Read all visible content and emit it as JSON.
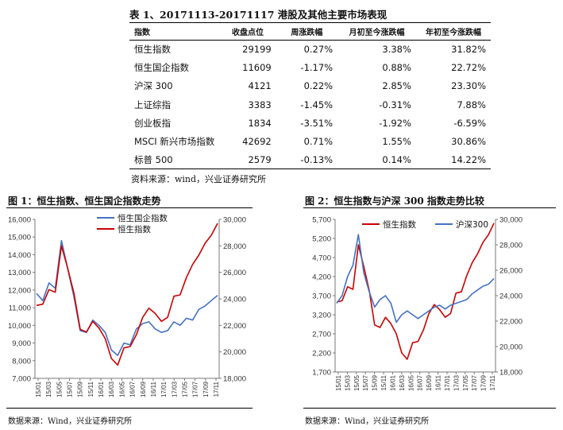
{
  "table": {
    "title": "表 1、20171113-20171117 港股及其他主要市场表现",
    "headers": [
      "指数",
      "收盘点位",
      "周涨跌幅",
      "月初至今涨跌幅",
      "年初至今涨跌幅"
    ],
    "rows": [
      [
        "恒生指数",
        "29199",
        "0.27%",
        "3.38%",
        "31.82%"
      ],
      [
        "恒生国企指数",
        "11609",
        "-1.17%",
        "0.88%",
        "22.72%"
      ],
      [
        "沪深 300",
        "4121",
        "0.22%",
        "2.85%",
        "23.30%"
      ],
      [
        "上证综指",
        "3383",
        "-1.45%",
        "-0.31%",
        "7.88%"
      ],
      [
        "创业板指",
        "1834",
        "-3.51%",
        "-1.92%",
        "-6.59%"
      ],
      [
        "MSCI 新兴市场指数",
        "42692",
        "0.71%",
        "1.55%",
        "30.86%"
      ],
      [
        "标普 500",
        "2579",
        "-0.13%",
        "0.14%",
        "14.22%"
      ]
    ],
    "source": "资料来源：wind，兴业证券研究所"
  },
  "figure1": {
    "title": "图 1：恒生指数、恒生国企指数走势",
    "source": "数据来源：Wind，兴业证券研究所"
  },
  "figure2": {
    "title": "图 2：恒生指数与沪深 300 指数走势比较",
    "source": "数据来源：Wind，兴业证券研究所"
  },
  "chart_data": [
    {
      "type": "line",
      "legend_position": "top-left",
      "grid": false,
      "x_tick_labels": [
        "15/01",
        "15/03",
        "15/05",
        "15/07",
        "15/09",
        "15/11",
        "16/01",
        "16/03",
        "16/05",
        "16/07",
        "16/09",
        "16/11",
        "17/01",
        "17/03",
        "17/05",
        "17/07",
        "17/09",
        "17/11"
      ],
      "left_axis": {
        "ylim": [
          7000,
          16000
        ],
        "ticks": [
          "7,000",
          "8,000",
          "9,000",
          "10,000",
          "11,000",
          "12,000",
          "13,000",
          "14,000",
          "15,000",
          "16,000"
        ]
      },
      "right_axis": {
        "ylim": [
          18000,
          30000
        ],
        "ticks": [
          "18,000",
          "20,000",
          "22,000",
          "24,000",
          "26,000",
          "28,000",
          "30,000"
        ]
      },
      "series": [
        {
          "name": "恒生国企指数",
          "axis": "left",
          "color": "#4472C4",
          "values": [
            11800,
            11400,
            12400,
            12100,
            14800,
            13200,
            11600,
            9700,
            9600,
            10300,
            10000,
            9600,
            8600,
            8300,
            9000,
            8900,
            9800,
            10100,
            10200,
            9800,
            9600,
            9700,
            10200,
            10000,
            10400,
            10300,
            10900,
            11100,
            11400,
            11700
          ]
        },
        {
          "name": "恒生指数",
          "axis": "right",
          "color": "#CC0000",
          "values": [
            23500,
            23600,
            24700,
            24500,
            28000,
            26300,
            24400,
            21700,
            21500,
            22300,
            21800,
            21000,
            19500,
            19000,
            20300,
            20400,
            21300,
            22600,
            23300,
            22900,
            22300,
            22600,
            24200,
            24300,
            25600,
            26600,
            27300,
            28200,
            28800,
            29700
          ]
        }
      ]
    },
    {
      "type": "line",
      "legend_position": "top",
      "grid": false,
      "x_tick_labels": [
        "15/01",
        "15/03",
        "15/05",
        "15/07",
        "15/09",
        "15/11",
        "16/01",
        "16/03",
        "16/05",
        "16/07",
        "16/09",
        "16/11",
        "17/01",
        "17/03",
        "17/05",
        "17/07",
        "17/09",
        "17/11"
      ],
      "left_axis": {
        "ylim": [
          1700,
          5700
        ],
        "ticks": [
          "1,700",
          "2,200",
          "2,700",
          "3,200",
          "3,700",
          "4,200",
          "4,700",
          "5,200",
          "5,700"
        ]
      },
      "right_axis": {
        "ylim": [
          18000,
          30000
        ],
        "ticks": [
          "18,000",
          "20,000",
          "22,000",
          "24,000",
          "26,000",
          "28,000",
          "30,000"
        ]
      },
      "series": [
        {
          "name": "恒生指数",
          "axis": "right",
          "color": "#CC0000",
          "values": [
            23500,
            23600,
            24700,
            24500,
            28000,
            26300,
            24400,
            21700,
            21500,
            22300,
            21800,
            21000,
            19500,
            19000,
            20300,
            20400,
            21300,
            22600,
            23300,
            22900,
            22300,
            22600,
            24200,
            24300,
            25600,
            26600,
            27300,
            28200,
            28800,
            29700
          ]
        },
        {
          "name": "沪深300",
          "axis": "left",
          "color": "#4472C4",
          "values": [
            3500,
            3700,
            4200,
            4500,
            5300,
            4300,
            3800,
            3400,
            3600,
            3700,
            3500,
            3000,
            3200,
            3300,
            3200,
            3100,
            3200,
            3300,
            3400,
            3450,
            3350,
            3450,
            3500,
            3550,
            3600,
            3750,
            3850,
            3950,
            4000,
            4150
          ]
        }
      ]
    }
  ]
}
